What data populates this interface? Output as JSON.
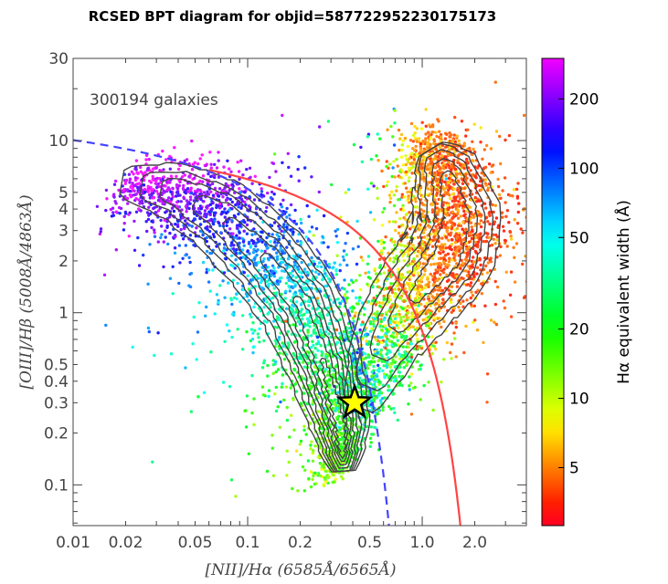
{
  "chart_data": {
    "type": "scatter",
    "title": "RCSED BPT diagram for objid=587722952230175173",
    "xlabel": "[NII]/Hα (6585Å/6565Å)",
    "ylabel": "[OIII]/Hβ (5008Å/4863Å)",
    "x_scale": "log",
    "y_scale": "log",
    "xlim": [
      0.01,
      3.95
    ],
    "ylim": [
      0.058,
      30
    ],
    "x_ticks": [
      "0.01",
      "0.02",
      "0.05",
      "0.1",
      "0.2",
      "0.5",
      "1.0",
      "2.0"
    ],
    "x_tick_values": [
      0.01,
      0.02,
      0.05,
      0.1,
      0.2,
      0.5,
      1.0,
      2.0
    ],
    "y_ticks": [
      "0.1",
      "0.2",
      "0.3",
      "0.4",
      "0.5",
      "1",
      "2",
      "3",
      "4",
      "5",
      "10",
      "30"
    ],
    "y_tick_values": [
      0.1,
      0.2,
      0.3,
      0.4,
      0.5,
      1,
      2,
      3,
      4,
      5,
      10,
      30
    ],
    "grid": false,
    "annotation": "300194 galaxies",
    "highlighted_object": {
      "x": 0.41,
      "y": 0.3,
      "marker": "star",
      "color": "#ffff00"
    },
    "demarcation_lines": [
      {
        "style": "dashed",
        "color": "#4444ff",
        "formula": "log y = 0.61/(log x - 0.05) + 1.3"
      },
      {
        "style": "solid",
        "color": "#ff4444",
        "formula": "log y = 0.61/(log x - 0.47) + 1.19",
        "x_start": 0.06
      }
    ],
    "colorbar": {
      "label": "Hα equivalent width (Å)",
      "scale": "log",
      "range": [
        2.8,
        300
      ],
      "ticks": [
        "5",
        "10",
        "20",
        "50",
        "100",
        "200"
      ],
      "tick_values": [
        5,
        10,
        20,
        50,
        100,
        200
      ],
      "colormap": [
        "#ff0022",
        "#ff7700",
        "#ffff00",
        "#00ff00",
        "#00ffff",
        "#0000ff",
        "#ff00ff"
      ]
    },
    "contour_color": "#444444"
  }
}
